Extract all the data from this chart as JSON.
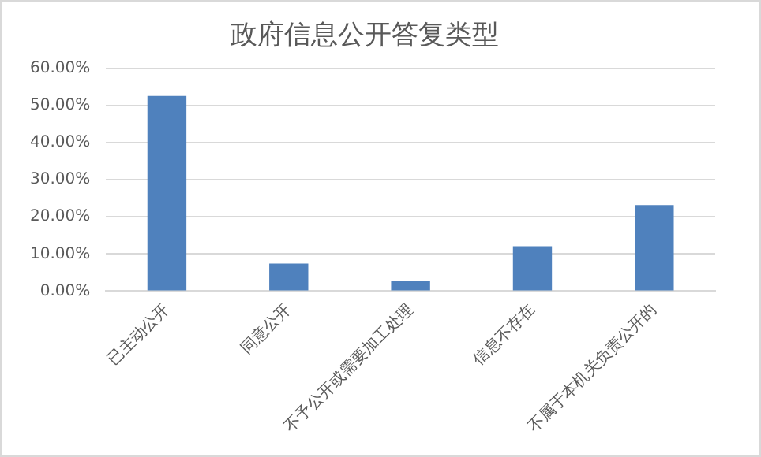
{
  "chart_data": {
    "type": "bar",
    "title": "政府信息公开答复类型",
    "categories": [
      "已主动公开",
      "同意公开",
      "不予公开或需要加工处理",
      "信息不存在",
      "不属于本机关负责公开的"
    ],
    "values": [
      52.6,
      7.4,
      2.8,
      12.1,
      23.2
    ],
    "color": "#4f81bd",
    "ylim": [
      0,
      60
    ],
    "yticks": [
      {
        "value": 0,
        "label": "0.00%"
      },
      {
        "value": 10,
        "label": "10.00%"
      },
      {
        "value": 20,
        "label": "20.00%"
      },
      {
        "value": 30,
        "label": "30.00%"
      },
      {
        "value": 40,
        "label": "40.00%"
      },
      {
        "value": 50,
        "label": "50.00%"
      },
      {
        "value": 60,
        "label": "60.00%"
      }
    ],
    "grid": "y",
    "legend": false
  }
}
